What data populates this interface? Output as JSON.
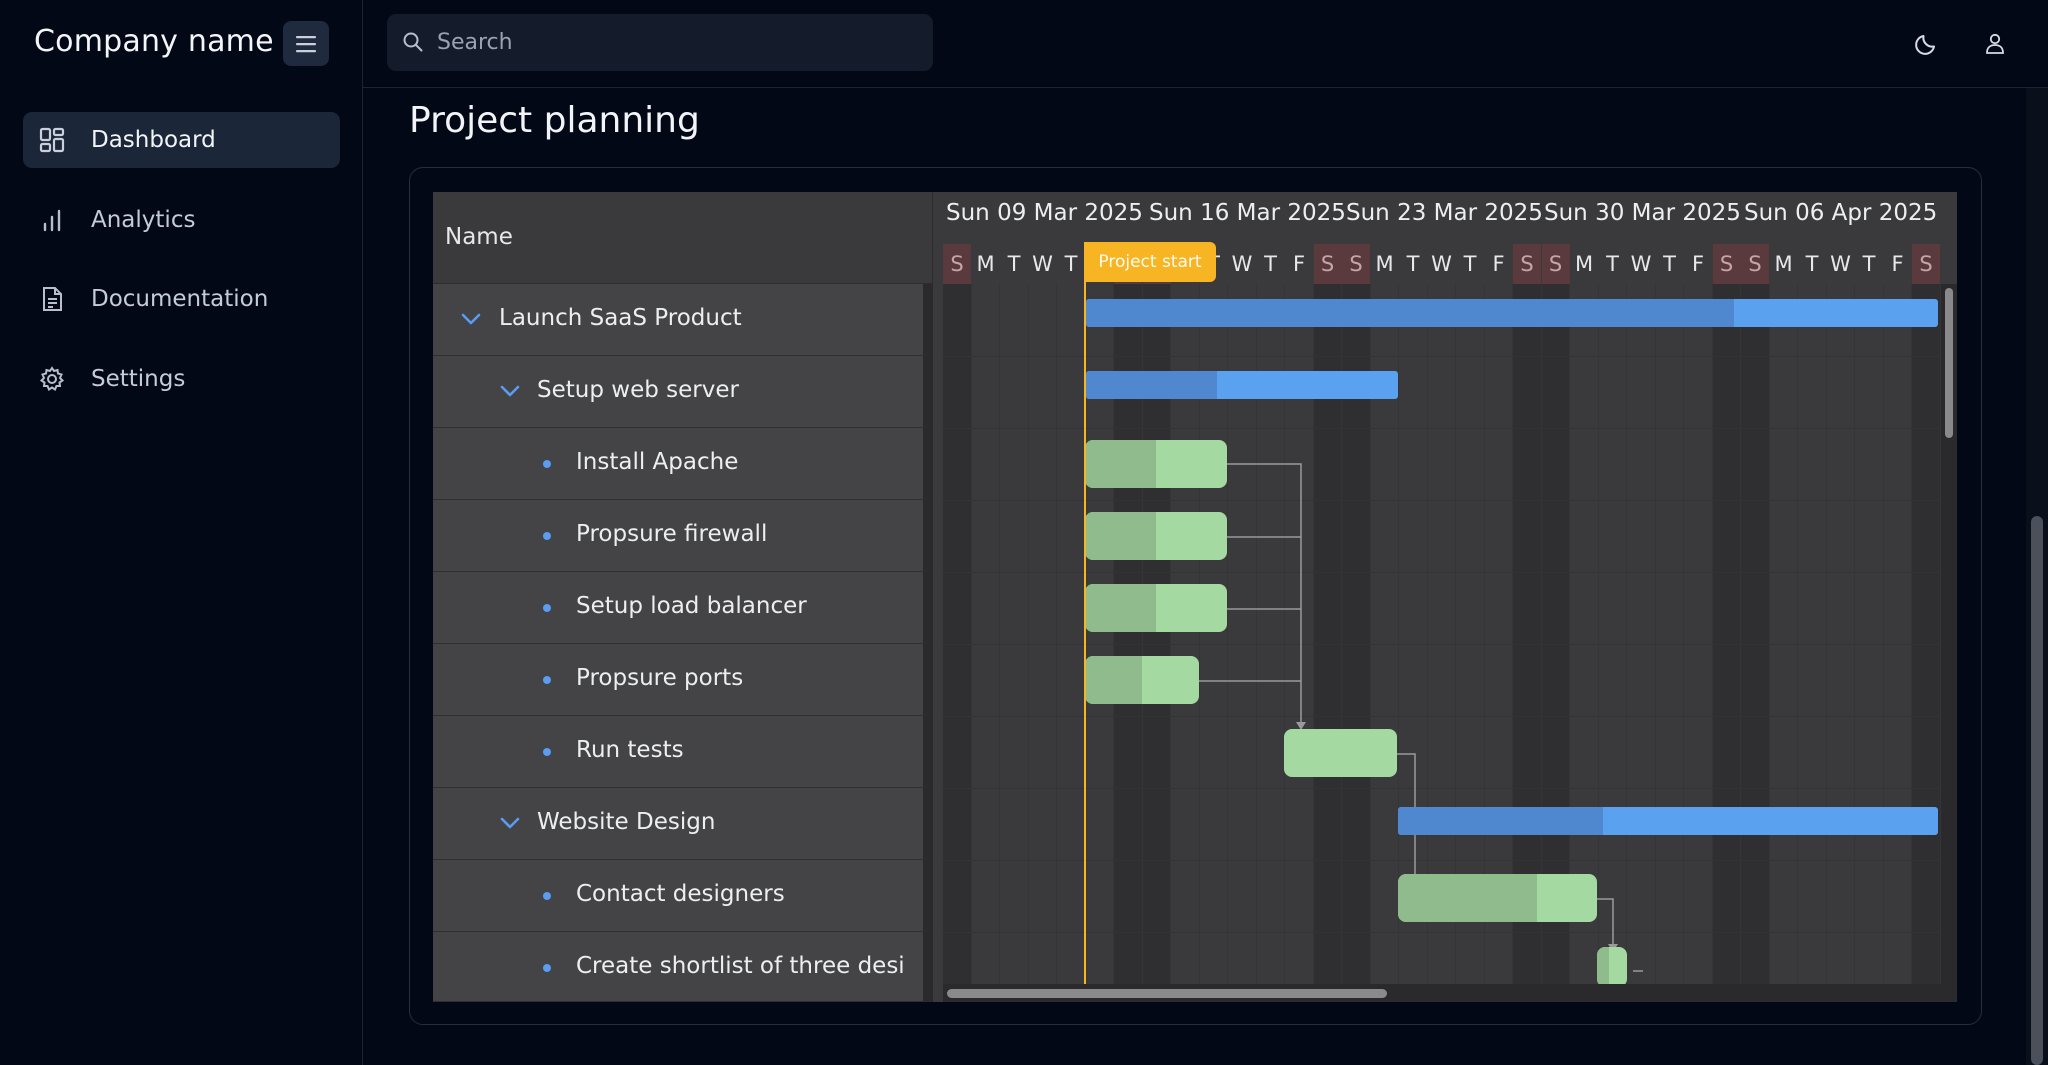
{
  "sidebar": {
    "brand": "Company name",
    "items": [
      {
        "label": "Dashboard",
        "icon": "dashboard-icon",
        "active": true
      },
      {
        "label": "Analytics",
        "icon": "bar-chart-icon",
        "active": false
      },
      {
        "label": "Documentation",
        "icon": "document-icon",
        "active": false
      },
      {
        "label": "Settings",
        "icon": "gear-icon",
        "active": false
      }
    ]
  },
  "topbar": {
    "search_placeholder": "Search"
  },
  "page": {
    "title": "Project planning"
  },
  "gantt": {
    "name_header": "Name",
    "weeks": [
      "Sun 09 Mar 2025",
      "Sun 16 Mar 2025",
      "Sun 23 Mar 2025",
      "Sun 30 Mar 2025",
      "Sun 06 Apr 2025"
    ],
    "days": [
      "S",
      "M",
      "T",
      "W",
      "T",
      "F",
      "S",
      "S",
      "M",
      "T",
      "W",
      "T",
      "F",
      "S",
      "S",
      "M",
      "T",
      "W",
      "T",
      "F",
      "S",
      "S",
      "M",
      "T",
      "W",
      "T",
      "F",
      "S",
      "S",
      "M",
      "T",
      "W",
      "T",
      "F",
      "S"
    ],
    "marker_label": "Project start",
    "rows": [
      {
        "label": "Launch SaaS Product",
        "type": "project",
        "progress": 0.76
      },
      {
        "label": "Setup web server",
        "type": "project",
        "progress": 0.42
      },
      {
        "label": "Install Apache",
        "type": "task",
        "progress": 0.5
      },
      {
        "label": "Propsure firewall",
        "type": "task",
        "progress": 0.5
      },
      {
        "label": "Setup load balancer",
        "type": "task",
        "progress": 0.5
      },
      {
        "label": "Propsure ports",
        "type": "task",
        "progress": 0.5
      },
      {
        "label": "Run tests",
        "type": "task",
        "progress": 0
      },
      {
        "label": "Website Design",
        "type": "project",
        "progress": 0.38
      },
      {
        "label": "Contact designers",
        "type": "task",
        "progress": 0.7
      },
      {
        "label": "Create shortlist of three desi",
        "type": "task",
        "progress": 0.4
      }
    ],
    "colors": {
      "project_bar": "#5aa2f0",
      "task_bar": "#a4d9a2",
      "marker": "#f7b423",
      "weekend": "#5b3a3d"
    }
  }
}
